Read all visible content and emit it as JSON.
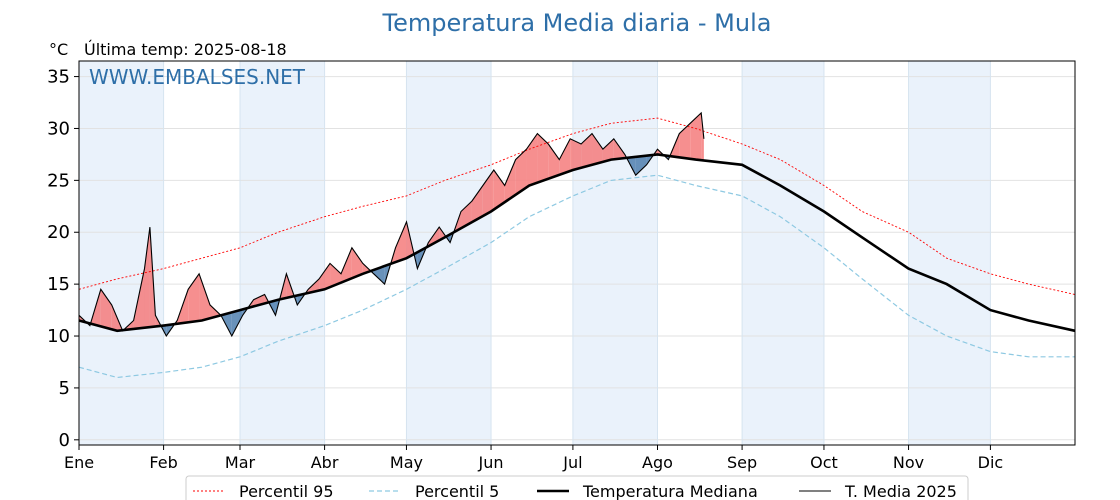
{
  "title": "Temperatura Media diaria - Mula",
  "unit_label": "°C",
  "last_temp": "Última temp: 2025-08-18",
  "watermark": "WWW.EMBALSES.NET",
  "colors": {
    "title": "#2e6fa8",
    "watermark": "#2e6fa8",
    "p95": "#ff0000",
    "p5": "#8ec9e2",
    "median": "#000000",
    "year": "#000000",
    "above_fill": "#f47b7b",
    "below_fill": "#4f7fae",
    "month_band": "#eaf2fb"
  },
  "chart_data": {
    "type": "line",
    "xlabel": "",
    "ylabel": "°C",
    "x_domain_days": [
      1,
      366
    ],
    "ylim": [
      -0.5,
      36.5
    ],
    "yticks": [
      0,
      5,
      10,
      15,
      20,
      25,
      30,
      35
    ],
    "month_labels": [
      "Ene",
      "Feb",
      "Mar",
      "Abr",
      "May",
      "Jun",
      "Jul",
      "Ago",
      "Sep",
      "Oct",
      "Nov",
      "Dic"
    ],
    "month_start_days": [
      1,
      32,
      60,
      91,
      121,
      152,
      182,
      213,
      244,
      274,
      305,
      335
    ],
    "grid": true,
    "legend_position": "bottom",
    "legend": [
      {
        "label": "Percentil 95",
        "style": "p95"
      },
      {
        "label": "Percentil 5",
        "style": "p5"
      },
      {
        "label": "Temperatura Mediana",
        "style": "median"
      },
      {
        "label": "T. Media 2025",
        "style": "year"
      }
    ],
    "series": [
      {
        "name": "Percentil 95",
        "x": [
          1,
          15,
          32,
          46,
          60,
          74,
          91,
          105,
          121,
          135,
          152,
          166,
          182,
          196,
          213,
          227,
          244,
          258,
          274,
          288,
          305,
          319,
          335,
          349,
          366
        ],
        "values": [
          14.5,
          15.5,
          16.5,
          17.5,
          18.5,
          20.0,
          21.5,
          22.5,
          23.5,
          25.0,
          26.5,
          28.0,
          29.5,
          30.5,
          31.0,
          30.0,
          28.5,
          27.0,
          24.5,
          22.0,
          20.0,
          17.5,
          16.0,
          15.0,
          14.0
        ]
      },
      {
        "name": "Percentil 5",
        "x": [
          1,
          15,
          32,
          46,
          60,
          74,
          91,
          105,
          121,
          135,
          152,
          166,
          182,
          196,
          213,
          227,
          244,
          258,
          274,
          288,
          305,
          319,
          335,
          349,
          366
        ],
        "values": [
          7.0,
          6.0,
          6.5,
          7.0,
          8.0,
          9.5,
          11.0,
          12.5,
          14.5,
          16.5,
          19.0,
          21.5,
          23.5,
          25.0,
          25.5,
          24.5,
          23.5,
          21.5,
          18.5,
          15.5,
          12.0,
          10.0,
          8.5,
          8.0,
          8.0
        ]
      },
      {
        "name": "Temperatura Mediana",
        "x": [
          1,
          15,
          32,
          46,
          60,
          74,
          91,
          105,
          121,
          135,
          152,
          166,
          182,
          196,
          213,
          227,
          244,
          258,
          274,
          288,
          305,
          319,
          335,
          349,
          366
        ],
        "values": [
          11.5,
          10.5,
          11.0,
          11.5,
          12.5,
          13.5,
          14.5,
          16.0,
          17.5,
          19.5,
          22.0,
          24.5,
          26.0,
          27.0,
          27.5,
          27.0,
          26.5,
          24.5,
          22.0,
          19.5,
          16.5,
          15.0,
          12.5,
          11.5,
          10.5
        ]
      },
      {
        "name": "T. Media 2025",
        "x": [
          1,
          5,
          9,
          13,
          17,
          21,
          25,
          27,
          29,
          33,
          37,
          41,
          45,
          49,
          53,
          57,
          61,
          65,
          69,
          73,
          77,
          81,
          85,
          89,
          93,
          97,
          101,
          105,
          109,
          113,
          117,
          121,
          125,
          129,
          133,
          137,
          141,
          145,
          149,
          153,
          157,
          161,
          165,
          169,
          173,
          177,
          181,
          185,
          189,
          193,
          197,
          201,
          205,
          209,
          213,
          217,
          221,
          225,
          229,
          230
        ],
        "values": [
          12.0,
          11.0,
          14.5,
          13.0,
          10.5,
          11.5,
          16.5,
          20.5,
          12.0,
          10.0,
          11.5,
          14.5,
          16.0,
          13.0,
          12.0,
          10.0,
          12.0,
          13.5,
          14.0,
          12.0,
          16.0,
          13.0,
          14.5,
          15.5,
          17.0,
          16.0,
          18.5,
          17.0,
          16.0,
          15.0,
          18.5,
          21.0,
          16.5,
          19.0,
          20.5,
          19.0,
          22.0,
          23.0,
          24.5,
          26.0,
          24.5,
          27.0,
          28.0,
          29.5,
          28.5,
          27.0,
          29.0,
          28.5,
          29.5,
          28.0,
          29.0,
          27.5,
          25.5,
          26.5,
          28.0,
          27.0,
          29.5,
          30.5,
          31.5,
          29.0
        ]
      }
    ]
  }
}
